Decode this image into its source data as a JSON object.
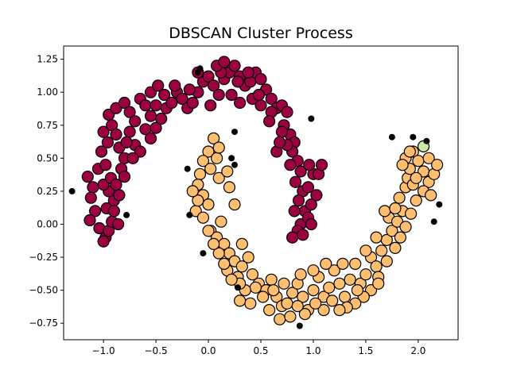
{
  "chart_data": {
    "type": "scatter",
    "title": "DBSCAN Cluster Process",
    "xlabel": "",
    "ylabel": "",
    "xlim": [
      -1.38,
      2.38
    ],
    "ylim": [
      -0.875,
      1.35
    ],
    "xticks": [
      -1.0,
      -0.5,
      0.0,
      0.5,
      1.0,
      1.5,
      2.0
    ],
    "xtick_labels": [
      "−1.0",
      "−0.5",
      "0.0",
      "0.5",
      "1.0",
      "1.5",
      "2.0"
    ],
    "yticks": [
      -0.75,
      -0.5,
      -0.25,
      0.0,
      0.25,
      0.5,
      0.75,
      1.0,
      1.25
    ],
    "ytick_labels": [
      "−0.75",
      "−0.50",
      "−0.25",
      "0.00",
      "0.25",
      "0.50",
      "0.75",
      "1.00",
      "1.25"
    ],
    "grid": false,
    "legend": "none",
    "series": [
      {
        "color": "#9e0142",
        "marker": "large-circle-edged",
        "points": [
          [
            -1.15,
            0.36
          ],
          [
            -1.1,
            0.28
          ],
          [
            -1.05,
            0.42
          ],
          [
            -1.12,
            0.2
          ],
          [
            -1.08,
            0.1
          ],
          [
            -1.13,
            0.03
          ],
          [
            -1.04,
            -0.03
          ],
          [
            -0.98,
            -0.1
          ],
          [
            -1.0,
            -0.13
          ],
          [
            -0.95,
            -0.05
          ],
          [
            -0.92,
            0.02
          ],
          [
            -0.97,
            0.12
          ],
          [
            -0.9,
            0.18
          ],
          [
            -0.95,
            0.25
          ],
          [
            -1.0,
            0.3
          ],
          [
            -0.93,
            0.35
          ],
          [
            -0.98,
            0.45
          ],
          [
            -1.02,
            0.55
          ],
          [
            -0.96,
            0.62
          ],
          [
            -1.0,
            0.7
          ],
          [
            -0.92,
            0.75
          ],
          [
            -0.88,
            0.68
          ],
          [
            -0.85,
            0.58
          ],
          [
            -0.8,
            0.5
          ],
          [
            -0.83,
            0.42
          ],
          [
            -0.88,
            0.3
          ],
          [
            -0.85,
            0.22
          ],
          [
            -0.9,
            0.1
          ],
          [
            -0.86,
            0.0
          ],
          [
            -0.8,
            0.36
          ],
          [
            -0.95,
            0.83
          ],
          [
            -0.88,
            0.88
          ],
          [
            -0.8,
            0.92
          ],
          [
            -0.75,
            0.85
          ],
          [
            -0.7,
            0.78
          ],
          [
            -0.75,
            0.7
          ],
          [
            -0.7,
            0.6
          ],
          [
            -0.65,
            0.55
          ],
          [
            -0.72,
            0.5
          ],
          [
            -0.78,
            0.62
          ],
          [
            -0.65,
            0.95
          ],
          [
            -0.6,
            0.9
          ],
          [
            -0.55,
            0.82
          ],
          [
            -0.6,
            0.72
          ],
          [
            -0.55,
            0.65
          ],
          [
            -0.5,
            0.73
          ],
          [
            -0.45,
            0.8
          ],
          [
            -0.5,
            0.9
          ],
          [
            -0.55,
            1.0
          ],
          [
            -0.48,
            1.05
          ],
          [
            -0.42,
            0.98
          ],
          [
            -0.4,
            0.88
          ],
          [
            -0.35,
            0.92
          ],
          [
            -0.3,
            1.0
          ],
          [
            -0.32,
            1.05
          ],
          [
            -0.25,
            0.95
          ],
          [
            -0.2,
            0.88
          ],
          [
            -0.15,
            0.92
          ],
          [
            -0.1,
            1.0
          ],
          [
            -0.05,
            1.08
          ],
          [
            0.0,
            1.12
          ],
          [
            0.05,
            1.05
          ],
          [
            0.1,
            0.98
          ],
          [
            0.15,
            1.1
          ],
          [
            0.2,
            1.15
          ],
          [
            0.25,
            1.2
          ],
          [
            0.3,
            1.12
          ],
          [
            0.35,
            1.05
          ],
          [
            0.4,
            1.08
          ],
          [
            0.45,
            1.15
          ],
          [
            0.5,
            1.1
          ],
          [
            0.55,
            1.02
          ],
          [
            0.6,
            0.95
          ],
          [
            0.65,
            0.88
          ],
          [
            0.7,
            0.9
          ],
          [
            0.75,
            0.85
          ],
          [
            0.72,
            0.75
          ],
          [
            0.78,
            0.68
          ],
          [
            0.82,
            0.62
          ],
          [
            0.8,
            0.55
          ],
          [
            0.85,
            0.48
          ],
          [
            0.88,
            0.4
          ],
          [
            0.83,
            0.32
          ],
          [
            0.9,
            0.25
          ],
          [
            0.86,
            0.18
          ],
          [
            0.92,
            0.1
          ],
          [
            0.88,
            0.0
          ],
          [
            0.85,
            -0.05
          ],
          [
            0.8,
            -0.1
          ],
          [
            0.9,
            -0.08
          ],
          [
            0.95,
            0.05
          ],
          [
            0.98,
            0.15
          ],
          [
            0.95,
            0.28
          ],
          [
            1.0,
            0.38
          ],
          [
            0.96,
            0.45
          ],
          [
            1.05,
            0.38
          ],
          [
            1.03,
            0.22
          ],
          [
            0.98,
            0.0
          ],
          [
            0.75,
            0.6
          ],
          [
            0.7,
            0.7
          ],
          [
            0.6,
            0.85
          ],
          [
            0.5,
            0.9
          ],
          [
            0.42,
            0.95
          ],
          [
            0.3,
            0.92
          ],
          [
            0.22,
            0.98
          ],
          [
            0.12,
            1.15
          ],
          [
            0.08,
            1.2
          ],
          [
            -0.1,
            1.15
          ],
          [
            0.15,
            1.23
          ],
          [
            0.38,
            1.15
          ],
          [
            0.65,
            0.55
          ],
          [
            0.78,
            0.45
          ],
          [
            0.82,
            0.1
          ],
          [
            0.02,
            0.9
          ],
          [
            -0.18,
            1.02
          ],
          [
            0.28,
            1.08
          ],
          [
            0.48,
            0.98
          ],
          [
            0.58,
            0.78
          ],
          [
            0.68,
            0.62
          ],
          [
            1.08,
            0.45
          ]
        ]
      },
      {
        "color": "#fdbf6f",
        "marker": "large-circle-edged",
        "points": [
          [
            0.05,
            0.65
          ],
          [
            0.0,
            0.55
          ],
          [
            -0.05,
            0.48
          ],
          [
            0.02,
            0.42
          ],
          [
            0.08,
            0.5
          ],
          [
            -0.08,
            0.38
          ],
          [
            -0.1,
            0.3
          ],
          [
            -0.05,
            0.22
          ],
          [
            0.0,
            0.15
          ],
          [
            -0.12,
            0.1
          ],
          [
            -0.05,
            0.05
          ],
          [
            0.02,
            -0.05
          ],
          [
            0.08,
            -0.1
          ],
          [
            0.12,
            0.02
          ],
          [
            0.15,
            -0.15
          ],
          [
            0.2,
            -0.22
          ],
          [
            0.25,
            -0.28
          ],
          [
            0.18,
            -0.35
          ],
          [
            0.28,
            -0.4
          ],
          [
            0.32,
            -0.32
          ],
          [
            0.38,
            -0.25
          ],
          [
            0.42,
            -0.38
          ],
          [
            0.48,
            -0.45
          ],
          [
            0.55,
            -0.5
          ],
          [
            0.6,
            -0.42
          ],
          [
            0.65,
            -0.55
          ],
          [
            0.7,
            -0.62
          ],
          [
            0.68,
            -0.72
          ],
          [
            0.75,
            -0.6
          ],
          [
            0.8,
            -0.52
          ],
          [
            0.85,
            -0.45
          ],
          [
            0.9,
            -0.55
          ],
          [
            0.95,
            -0.65
          ],
          [
            1.0,
            -0.5
          ],
          [
            1.05,
            -0.4
          ],
          [
            1.1,
            -0.55
          ],
          [
            1.15,
            -0.48
          ],
          [
            1.2,
            -0.35
          ],
          [
            1.25,
            -0.45
          ],
          [
            1.3,
            -0.55
          ],
          [
            1.35,
            -0.42
          ],
          [
            1.4,
            -0.3
          ],
          [
            1.45,
            -0.45
          ],
          [
            1.5,
            -0.38
          ],
          [
            1.55,
            -0.25
          ],
          [
            1.6,
            -0.32
          ],
          [
            1.65,
            -0.2
          ],
          [
            1.7,
            -0.12
          ],
          [
            1.75,
            -0.05
          ],
          [
            1.72,
            0.05
          ],
          [
            1.8,
            0.02
          ],
          [
            1.85,
            0.1
          ],
          [
            1.82,
            0.2
          ],
          [
            1.88,
            0.28
          ],
          [
            1.9,
            0.35
          ],
          [
            1.95,
            0.3
          ],
          [
            1.92,
            0.42
          ],
          [
            1.88,
            0.5
          ],
          [
            1.95,
            0.55
          ],
          [
            2.0,
            0.48
          ],
          [
            2.05,
            0.4
          ],
          [
            2.1,
            0.32
          ],
          [
            2.15,
            0.38
          ],
          [
            2.1,
            0.5
          ],
          [
            2.05,
            0.25
          ],
          [
            1.98,
            0.18
          ],
          [
            1.93,
            0.08
          ],
          [
            1.88,
            -0.02
          ],
          [
            1.83,
            -0.1
          ],
          [
            1.78,
            -0.18
          ],
          [
            1.7,
            -0.28
          ],
          [
            1.62,
            -0.4
          ],
          [
            1.55,
            -0.5
          ],
          [
            1.48,
            -0.55
          ],
          [
            1.4,
            -0.6
          ],
          [
            1.32,
            -0.63
          ],
          [
            1.25,
            -0.65
          ],
          [
            1.18,
            -0.58
          ],
          [
            1.1,
            -0.65
          ],
          [
            1.02,
            -0.6
          ],
          [
            0.92,
            -0.68
          ],
          [
            0.85,
            -0.62
          ],
          [
            0.78,
            -0.7
          ],
          [
            0.62,
            -0.5
          ],
          [
            0.52,
            -0.55
          ],
          [
            0.45,
            -0.48
          ],
          [
            0.35,
            -0.5
          ],
          [
            0.3,
            -0.45
          ],
          [
            0.22,
            -0.42
          ],
          [
            0.15,
            -0.3
          ],
          [
            0.1,
            -0.22
          ],
          [
            0.05,
            -0.15
          ],
          [
            0.0,
            -0.05
          ],
          [
            -0.1,
            0.18
          ],
          [
            -0.15,
            0.25
          ],
          [
            0.1,
            0.35
          ],
          [
            0.18,
            0.4
          ],
          [
            0.1,
            0.58
          ],
          [
            0.2,
            0.28
          ],
          [
            0.25,
            0.15
          ],
          [
            1.0,
            -0.35
          ],
          [
            1.12,
            -0.3
          ],
          [
            1.28,
            -0.3
          ],
          [
            1.42,
            -0.5
          ],
          [
            1.6,
            -0.1
          ],
          [
            1.68,
            0.1
          ],
          [
            1.78,
            0.12
          ],
          [
            1.98,
            0.35
          ],
          [
            2.12,
            0.22
          ],
          [
            2.18,
            0.45
          ],
          [
            1.62,
            -0.45
          ],
          [
            1.5,
            -0.2
          ],
          [
            0.88,
            -0.38
          ],
          [
            0.72,
            -0.45
          ],
          [
            0.58,
            -0.65
          ],
          [
            0.4,
            -0.6
          ],
          [
            0.3,
            -0.58
          ],
          [
            0.32,
            -0.15
          ],
          [
            1.92,
            0.55
          ],
          [
            1.85,
            0.45
          ]
        ]
      },
      {
        "color": "#c7e9a0",
        "marker": "large-circle-edged",
        "points": [
          [
            2.05,
            0.59
          ]
        ]
      },
      {
        "color": "#000000",
        "marker": "small-dot",
        "points": [
          [
            -1.3,
            0.25
          ],
          [
            -0.78,
            0.07
          ],
          [
            -0.2,
            0.42
          ],
          [
            -0.18,
            0.07
          ],
          [
            -0.05,
            -0.22
          ],
          [
            0.22,
            0.5
          ],
          [
            0.25,
            0.45
          ],
          [
            0.25,
            0.7
          ],
          [
            -0.1,
            1.15
          ],
          [
            -0.08,
            1.18
          ],
          [
            0.98,
            0.8
          ],
          [
            1.75,
            0.66
          ],
          [
            1.95,
            0.66
          ],
          [
            2.08,
            0.63
          ],
          [
            2.2,
            0.15
          ],
          [
            2.15,
            0.02
          ],
          [
            0.87,
            -0.77
          ],
          [
            0.28,
            -0.48
          ]
        ]
      }
    ]
  }
}
